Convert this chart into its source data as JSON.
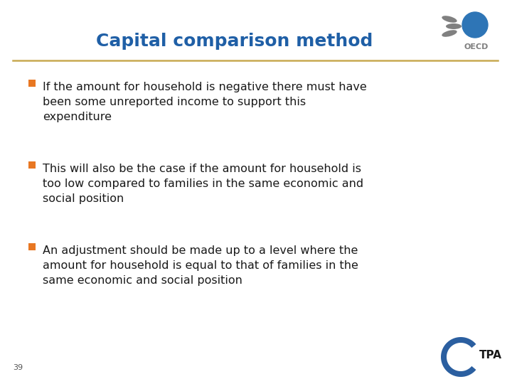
{
  "title": "Capital comparison method",
  "title_color": "#1F5FA6",
  "title_fontsize": 18,
  "background_color": "#FFFFFF",
  "separator_color": "#C8A951",
  "bullet_color": "#E87722",
  "text_color": "#1a1a1a",
  "body_fontsize": 11.5,
  "bullet_points": [
    "If the amount for household is negative there must have\nbeen some unreported income to support this\nexpenditure",
    "This will also be the case if the amount for household is\ntoo low compared to families in the same economic and\nsocial position",
    "An adjustment should be made up to a level where the\namount for household is equal to that of families in the\nsame economic and social position"
  ],
  "page_number": "39",
  "oecd_blue": "#2E75B6",
  "oecd_grey": "#808080",
  "tpa_blue": "#2B5FA0"
}
